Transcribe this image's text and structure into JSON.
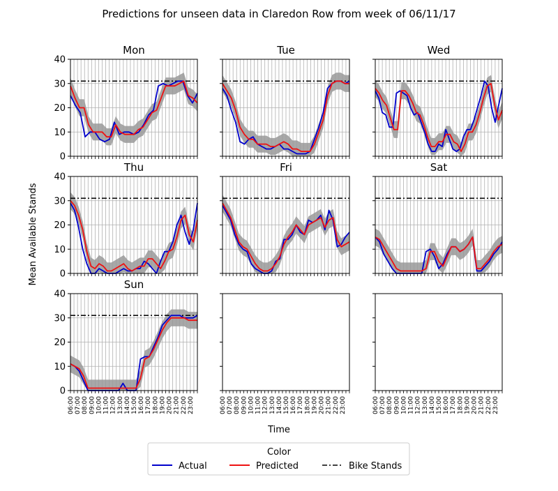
{
  "title": "Predictions for unseen data in Claredon Row from week of 06/11/17",
  "ylabel": "Mean Available Stands",
  "xlabel": "Time",
  "legend": {
    "title": "Color",
    "entries": [
      {
        "label": "Actual",
        "color": "#0000cc",
        "style": "solid"
      },
      {
        "label": "Predicted",
        "color": "#ee1111",
        "style": "solid"
      },
      {
        "label": "Bike Stands",
        "color": "#000000",
        "style": "dashdot"
      }
    ]
  },
  "colors": {
    "actual": "#0000cc",
    "predicted": "#ee1111",
    "band": "#999999",
    "grid": "#b0b0b0",
    "stands": "#000000"
  },
  "yticks": [
    0,
    10,
    20,
    30,
    40
  ],
  "xticks": [
    "06:00",
    "07:00",
    "08:00",
    "09:00",
    "10:00",
    "11:00",
    "12:00",
    "13:00",
    "14:00",
    "15:00",
    "16:00",
    "17:00",
    "18:00",
    "19:00",
    "20:00",
    "21:00",
    "22:00",
    "23:00"
  ],
  "chart_data": [
    {
      "type": "line",
      "title": "Mon",
      "ylim": [
        0,
        40
      ],
      "x_range": [
        "06:00",
        "00:00"
      ],
      "bike_stands": 31,
      "series": [
        {
          "name": "Actual",
          "values": [
            25,
            21,
            18,
            8,
            10,
            10,
            7,
            6,
            7,
            14,
            9,
            10,
            10,
            9,
            10,
            13,
            17,
            19,
            29,
            30,
            29,
            30,
            31,
            31,
            25,
            22,
            26
          ]
        },
        {
          "name": "Predicted",
          "values": [
            29,
            24,
            20,
            20,
            13,
            10,
            10,
            10,
            8,
            8,
            13,
            10,
            9,
            9,
            9,
            11,
            12,
            15,
            18,
            19,
            24,
            29,
            29,
            29,
            30,
            31,
            25,
            24,
            22
          ]
        }
      ]
    },
    {
      "type": "line",
      "title": "Tue",
      "ylim": [
        0,
        40
      ],
      "x_range": [
        "06:00",
        "00:00"
      ],
      "bike_stands": 31,
      "series": [
        {
          "name": "Actual",
          "values": [
            28,
            25,
            19,
            14,
            6,
            5,
            7,
            8,
            5,
            4,
            3,
            3,
            4,
            5,
            3,
            3,
            2,
            1,
            1,
            1,
            2,
            7,
            12,
            18,
            28,
            30,
            31,
            31,
            30,
            31
          ]
        },
        {
          "name": "Predicted",
          "values": [
            30,
            27,
            24,
            19,
            12,
            9,
            7,
            7,
            5,
            5,
            5,
            4,
            4,
            5,
            6,
            5,
            3,
            3,
            2,
            2,
            2,
            5,
            10,
            15,
            25,
            30,
            31,
            31,
            30,
            30
          ]
        }
      ]
    },
    {
      "type": "line",
      "title": "Wed",
      "ylim": [
        0,
        40
      ],
      "x_range": [
        "06:00",
        "00:00"
      ],
      "bike_stands": 31,
      "series": [
        {
          "name": "Actual",
          "values": [
            27,
            24,
            18,
            17,
            12,
            12,
            26,
            27,
            26,
            25,
            20,
            17,
            18,
            14,
            10,
            5,
            2,
            2,
            5,
            4,
            11,
            7,
            3,
            2,
            3,
            8,
            11,
            11,
            15,
            20,
            25,
            31,
            29,
            20,
            14,
            21,
            28
          ]
        },
        {
          "name": "Predicted",
          "values": [
            28,
            26,
            23,
            21,
            16,
            11,
            11,
            27,
            27,
            25,
            22,
            18,
            17,
            13,
            8,
            4,
            4,
            6,
            6,
            9,
            9,
            6,
            5,
            2,
            5,
            10,
            10,
            13,
            18,
            24,
            29,
            30,
            21,
            15,
            19
          ]
        }
      ]
    },
    {
      "type": "line",
      "title": "Thu",
      "ylim": [
        0,
        40
      ],
      "x_range": [
        "06:00",
        "00:00"
      ],
      "bike_stands": 31,
      "series": [
        {
          "name": "Actual",
          "values": [
            29,
            26,
            19,
            10,
            4,
            0,
            0,
            2,
            1,
            0,
            0,
            0,
            1,
            2,
            1,
            1,
            2,
            2,
            5,
            4,
            2,
            0,
            5,
            9,
            9,
            13,
            20,
            24,
            17,
            12,
            18,
            29
          ]
        },
        {
          "name": "Predicted",
          "values": [
            30,
            28,
            24,
            18,
            9,
            3,
            2,
            4,
            3,
            1,
            1,
            2,
            3,
            4,
            2,
            1,
            2,
            3,
            3,
            6,
            6,
            4,
            2,
            5,
            9,
            10,
            15,
            22,
            24,
            16,
            13,
            22
          ]
        }
      ]
    },
    {
      "type": "line",
      "title": "Fri",
      "ylim": [
        0,
        40
      ],
      "x_range": [
        "06:00",
        "00:00"
      ],
      "bike_stands": 31,
      "series": [
        {
          "name": "Actual",
          "values": [
            28,
            25,
            22,
            16,
            12,
            10,
            9,
            4,
            2,
            1,
            0,
            0,
            1,
            5,
            6,
            14,
            14,
            16,
            20,
            17,
            16,
            22,
            21,
            22,
            24,
            18,
            26,
            22,
            11,
            12,
            15,
            17
          ]
        },
        {
          "name": "Predicted",
          "values": [
            29,
            26,
            23,
            18,
            13,
            11,
            10,
            7,
            4,
            2,
            1,
            1,
            2,
            4,
            7,
            12,
            15,
            17,
            20,
            18,
            16,
            20,
            21,
            22,
            23,
            19,
            22,
            23,
            14,
            11,
            12,
            13
          ]
        }
      ]
    },
    {
      "type": "line",
      "title": "Sat",
      "ylim": [
        0,
        40
      ],
      "x_range": [
        "06:00",
        "00:00"
      ],
      "bike_stands": 31,
      "series": [
        {
          "name": "Actual",
          "values": [
            15,
            13,
            8,
            5,
            2,
            0,
            0,
            0,
            0,
            0,
            0,
            0,
            9,
            10,
            7,
            2,
            4,
            8,
            11,
            11,
            9,
            10,
            12,
            15,
            1,
            1,
            3,
            5,
            8,
            10,
            13
          ]
        },
        {
          "name": "Predicted",
          "values": [
            15,
            14,
            11,
            8,
            5,
            2,
            1,
            1,
            1,
            1,
            1,
            1,
            2,
            9,
            9,
            5,
            3,
            7,
            11,
            11,
            9,
            10,
            12,
            15,
            2,
            2,
            4,
            6,
            9,
            11,
            12
          ]
        }
      ]
    },
    {
      "type": "line",
      "title": "Sun",
      "ylim": [
        0,
        40
      ],
      "x_range": [
        "06:00",
        "00:00"
      ],
      "bike_stands": 31,
      "series": [
        {
          "name": "Actual",
          "values": [
            11,
            10,
            8,
            4,
            0,
            0,
            0,
            0,
            0,
            0,
            0,
            0,
            3,
            0,
            0,
            0,
            13,
            14,
            14,
            18,
            22,
            27,
            29,
            31,
            31,
            31,
            30,
            30,
            30,
            31
          ]
        },
        {
          "name": "Predicted",
          "values": [
            11,
            10,
            9,
            6,
            1,
            1,
            1,
            1,
            1,
            1,
            1,
            1,
            1,
            1,
            1,
            1,
            5,
            13,
            14,
            17,
            21,
            25,
            28,
            30,
            30,
            30,
            30,
            29,
            29,
            29
          ]
        }
      ]
    },
    {
      "type": "line",
      "title": "",
      "ylim": [
        0,
        40
      ],
      "empty": true
    },
    {
      "type": "line",
      "title": "",
      "ylim": [
        0,
        40
      ],
      "empty": true
    }
  ]
}
